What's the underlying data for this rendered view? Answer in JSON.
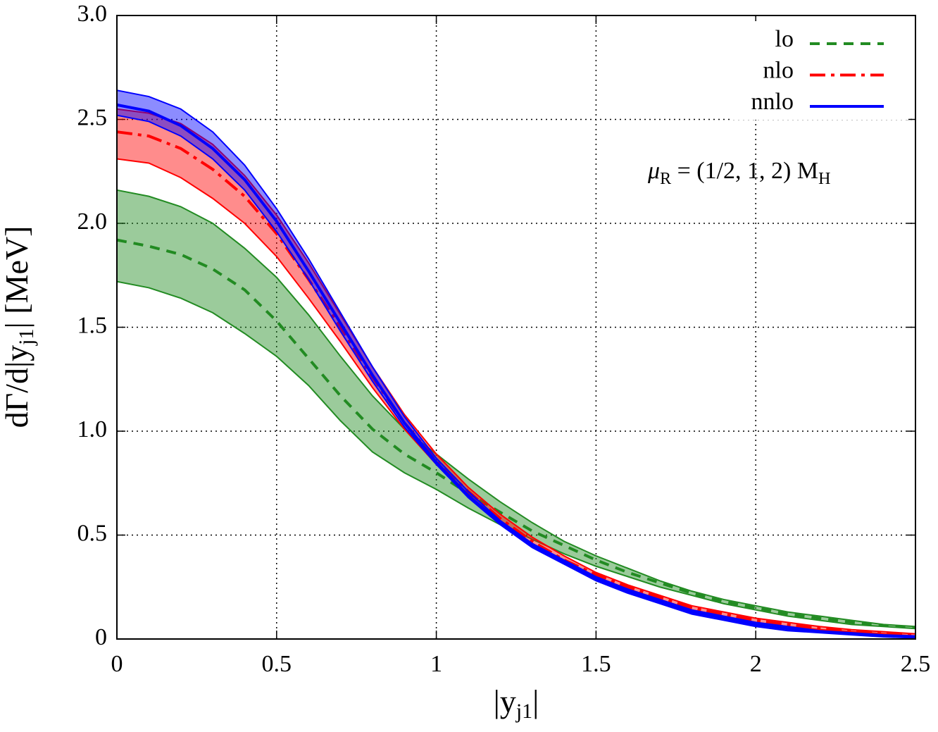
{
  "chart_data": {
    "type": "line",
    "xlabel": [
      "|y",
      "j1",
      "|"
    ],
    "ylabel": [
      "dΓ/d|y",
      "j1",
      "| [MeV]"
    ],
    "annotation": [
      "μ",
      "R",
      " = (1/2, 1, 2) M",
      "H"
    ],
    "x": [
      0,
      0.1,
      0.2,
      0.3,
      0.4,
      0.5,
      0.6,
      0.7,
      0.8,
      0.9,
      1.0,
      1.1,
      1.2,
      1.3,
      1.4,
      1.5,
      1.6,
      1.7,
      1.8,
      1.9,
      2.0,
      2.1,
      2.2,
      2.3,
      2.4,
      2.5
    ],
    "xlim": [
      0,
      2.5
    ],
    "xticks": [
      0,
      0.5,
      1,
      1.5,
      2,
      2.5
    ],
    "ylim": [
      0,
      3
    ],
    "yticks": [
      0,
      0.5,
      {
        "value": 1,
        "label": "1.0"
      },
      1.5,
      {
        "value": 2,
        "label": "2.0"
      },
      2.5,
      {
        "value": 3,
        "label": "3.0"
      }
    ],
    "grid": true,
    "legend": "upper right",
    "series": [
      {
        "name": "lo",
        "color": "#228b22",
        "dash": "dashed",
        "values": [
          1.92,
          1.89,
          1.85,
          1.78,
          1.68,
          1.53,
          1.35,
          1.17,
          1.01,
          0.89,
          0.8,
          0.7,
          0.61,
          0.52,
          0.45,
          0.38,
          0.32,
          0.27,
          0.22,
          0.18,
          0.15,
          0.12,
          0.1,
          0.08,
          0.065,
          0.055
        ],
        "upper": [
          2.16,
          2.13,
          2.08,
          2.0,
          1.88,
          1.74,
          1.56,
          1.36,
          1.17,
          1.01,
          0.89,
          0.77,
          0.66,
          0.56,
          0.47,
          0.4,
          0.34,
          0.28,
          0.23,
          0.19,
          0.16,
          0.13,
          0.11,
          0.09,
          0.07,
          0.06
        ],
        "lower": [
          1.72,
          1.69,
          1.64,
          1.57,
          1.47,
          1.36,
          1.22,
          1.05,
          0.9,
          0.8,
          0.72,
          0.63,
          0.55,
          0.48,
          0.41,
          0.35,
          0.3,
          0.25,
          0.21,
          0.17,
          0.14,
          0.11,
          0.09,
          0.07,
          0.06,
          0.05
        ]
      },
      {
        "name": "nlo",
        "color": "#ff0000",
        "dash": "dashdot",
        "values": [
          2.44,
          2.42,
          2.36,
          2.26,
          2.13,
          1.95,
          1.73,
          1.5,
          1.26,
          1.04,
          0.86,
          0.71,
          0.58,
          0.47,
          0.38,
          0.31,
          0.25,
          0.2,
          0.15,
          0.12,
          0.09,
          0.07,
          0.05,
          0.04,
          0.03,
          0.02
        ],
        "upper": [
          2.55,
          2.53,
          2.48,
          2.38,
          2.23,
          2.04,
          1.81,
          1.56,
          1.31,
          1.08,
          0.89,
          0.73,
          0.6,
          0.49,
          0.4,
          0.32,
          0.26,
          0.21,
          0.16,
          0.13,
          0.1,
          0.08,
          0.06,
          0.045,
          0.035,
          0.025
        ],
        "lower": [
          2.31,
          2.29,
          2.22,
          2.12,
          2.0,
          1.84,
          1.64,
          1.43,
          1.21,
          1.01,
          0.84,
          0.69,
          0.57,
          0.46,
          0.37,
          0.3,
          0.24,
          0.19,
          0.14,
          0.11,
          0.08,
          0.06,
          0.045,
          0.035,
          0.025,
          0.015
        ]
      },
      {
        "name": "nnlo",
        "color": "#0000ff",
        "dash": "solid",
        "values": [
          2.57,
          2.54,
          2.47,
          2.36,
          2.21,
          2.01,
          1.77,
          1.52,
          1.27,
          1.04,
          0.85,
          0.69,
          0.56,
          0.45,
          0.37,
          0.29,
          0.23,
          0.18,
          0.13,
          0.1,
          0.07,
          0.05,
          0.035,
          0.025,
          0.015,
          0.01
        ],
        "upper": [
          2.64,
          2.61,
          2.55,
          2.44,
          2.28,
          2.07,
          1.83,
          1.57,
          1.31,
          1.07,
          0.87,
          0.71,
          0.57,
          0.46,
          0.38,
          0.3,
          0.24,
          0.19,
          0.14,
          0.11,
          0.08,
          0.06,
          0.04,
          0.03,
          0.02,
          0.015
        ],
        "lower": [
          2.52,
          2.49,
          2.42,
          2.31,
          2.16,
          1.96,
          1.73,
          1.48,
          1.24,
          1.02,
          0.84,
          0.68,
          0.55,
          0.44,
          0.36,
          0.28,
          0.22,
          0.17,
          0.12,
          0.09,
          0.06,
          0.04,
          0.03,
          0.02,
          0.01,
          0.005
        ]
      }
    ]
  }
}
